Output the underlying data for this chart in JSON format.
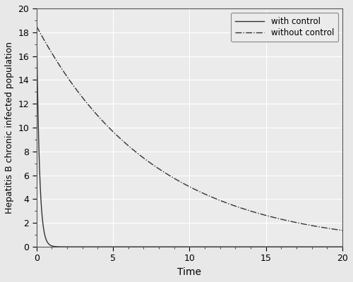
{
  "title": "",
  "xlabel": "Time",
  "ylabel": "Hepatitis B chronic infected population",
  "xlim": [
    0,
    20
  ],
  "ylim": [
    0,
    20
  ],
  "xticks": [
    0,
    5,
    10,
    15,
    20
  ],
  "yticks": [
    0,
    2,
    4,
    6,
    8,
    10,
    12,
    14,
    16,
    18,
    20
  ],
  "with_control_start": 19.0,
  "with_control_decay": 5.5,
  "without_control_start": 18.5,
  "without_control_decay": 0.13,
  "line_color": "#333333",
  "legend_labels": [
    "with control",
    "without control"
  ],
  "background_color": "#ebebeb",
  "grid_color": "#ffffff",
  "figsize": [
    5.0,
    4.0
  ],
  "dpi": 100
}
